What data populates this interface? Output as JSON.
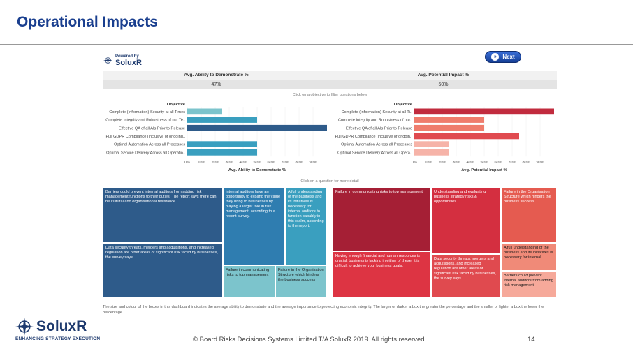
{
  "slide": {
    "title": "Operational Impacts",
    "copyright": "© Board Risks Decisions Systems Limited T/A SoluxR 2019. All rights reserved.",
    "page_number": "14",
    "logo_brand": "SoluxR",
    "logo_tagline": "ENHANCING STRATEGY EXECUTION"
  },
  "dashboard": {
    "powered_by": "Powered by",
    "powered_brand": "SoluxR",
    "next_label": "Next",
    "kpis": [
      {
        "label": "Avg. Ability to Demonstrate %",
        "value": "47%"
      },
      {
        "label": "Avg. Potential Impact %",
        "value": "50%"
      }
    ],
    "hint_objective": "Click on a objective to filter questions below",
    "hint_question": "Click on a question for more detail",
    "footnote": "The size and colour of the boxes in this dashboard indicates the average ability to demonstrate and the average importance to protecting economic integrity. The larger or darker a box the greater the percentage and the smaller or lighter a box the lower the percentage."
  },
  "chart_data": [
    {
      "type": "bar",
      "orientation": "horizontal",
      "title": "",
      "category_header": "Objective",
      "xlabel": "Avg. Ability to Demonstrate %",
      "xlim": [
        0,
        100
      ],
      "ticks": [
        "0%",
        "10%",
        "20%",
        "30%",
        "40%",
        "50%",
        "60%",
        "70%",
        "80%",
        "90%"
      ],
      "categories": [
        "Complete (Information) Security at all Times",
        "Complete Integrity and Robustness of our Te..",
        "Effective QA of all AIs Prior to Release",
        "Full GDPR Compliance (inclusive of ongoing..",
        "Optimal Automation Across all Processes",
        "Optimal Service Delivery Across all Operatio.."
      ],
      "values": [
        25,
        50,
        100,
        0,
        50,
        50
      ],
      "colors": [
        "#7cc4cc",
        "#3a9fbf",
        "#2e5b8a",
        "#6fbfcc",
        "#3a9fbf",
        "#3a9fbf"
      ]
    },
    {
      "type": "bar",
      "orientation": "horizontal",
      "title": "",
      "category_header": "Objective",
      "xlabel": "Avg. Potential Impact %",
      "xlim": [
        0,
        100
      ],
      "ticks": [
        "0%",
        "10%",
        "20%",
        "30%",
        "40%",
        "50%",
        "60%",
        "70%",
        "80%",
        "90%"
      ],
      "categories": [
        "Complete (Information) Security at all Ti..",
        "Complete Integrity and Robustness of our..",
        "Effective QA of all AIs Prior to Release",
        "Full GDPR Compliance (inclusive of ongoin..",
        "Optimal Automation Across all Processes",
        "Optimal Service Delivery Across all Opera.."
      ],
      "values": [
        100,
        50,
        50,
        75,
        25,
        25
      ],
      "colors": [
        "#c12b3e",
        "#ef7c6c",
        "#ef7c6c",
        "#e04a4f",
        "#f6b3a8",
        "#f6b3a8"
      ]
    },
    {
      "type": "treemap",
      "groups": [
        {
          "name": "Avg. Ability to Demonstrate %",
          "items": [
            {
              "label": "Barriers could prevent internal auditors from adding risk management functions to their duties. The report says there can be cultural and organisational resistance",
              "color": "#2e5b8a"
            },
            {
              "label": "Data security threats, mergers and acquisitions, and increased regulation are other areas of significant risk faced by businesses, the survey says.",
              "color": "#2e5b8a"
            },
            {
              "label": "Internal auditors have an opportunity to expand the value they bring to businesses by playing a larger role in risk management, according to a recent survey.",
              "color": "#2f7db0"
            },
            {
              "label": "A full understanding of the business and its initiatives is necessary for internal auditors to function capably in this realm, according to the report.",
              "color": "#3a9fbf"
            },
            {
              "label": "Failure in communicating risks to top management",
              "color": "#7cc4cc"
            },
            {
              "label": "Failure in the Organisation Structure which hinders the business success",
              "color": "#7cc4cc"
            }
          ]
        },
        {
          "name": "Avg. Potential Impact %",
          "items": [
            {
              "label": "Failure in communicating risks to top management",
              "color": "#a51f35"
            },
            {
              "label": "Having enough financial and human resources is crucial; business is lacking in either of these, it is difficult to achieve your business goals.",
              "color": "#dd3443"
            },
            {
              "label": "Understanding and evaluating business strategy risks & opportunities",
              "color": "#d42f40"
            },
            {
              "label": "Data security threats, mergers and acquisitions, and increased regulation are other areas of significant risk faced by businesses, the survey says.",
              "color": "#e04a4f"
            },
            {
              "label": "Failure in the Organisation Structure which hinders the business success",
              "color": "#e55b50"
            },
            {
              "label": "A full understanding of the business and its initiatives is necessary for internal",
              "color": "#f08a78"
            },
            {
              "label": "Barriers could prevent internal auditors from adding risk management",
              "color": "#f6a99a"
            }
          ]
        }
      ]
    }
  ]
}
